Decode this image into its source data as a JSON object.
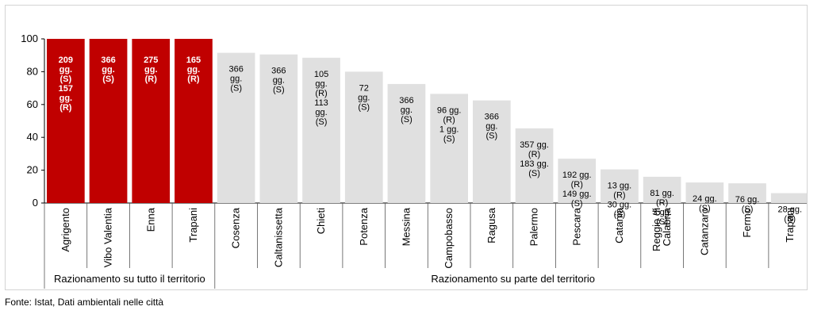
{
  "chart_data": {
    "type": "bar",
    "title": "",
    "xlabel": "",
    "ylabel": "",
    "ylim": [
      0,
      100
    ],
    "yticks": [
      0,
      20,
      40,
      60,
      80,
      100
    ],
    "grid": false,
    "groups": [
      {
        "label": "Razionamento su tutto il territorio",
        "color": "#c00000"
      },
      {
        "label": "Razionamento su parte del territorio",
        "color": "#e0e0e0"
      }
    ],
    "categories": [
      {
        "name": "Agrigento",
        "group": 0,
        "value": 100,
        "annotation": [
          "209",
          "gg.",
          "(S)",
          "157",
          "gg.",
          "(R)"
        ]
      },
      {
        "name": "Vibo Valentia",
        "group": 0,
        "value": 100,
        "annotation": [
          "366",
          "gg.",
          "(S)"
        ]
      },
      {
        "name": "Enna",
        "group": 0,
        "value": 100,
        "annotation": [
          "275",
          "gg.",
          "(R)"
        ]
      },
      {
        "name": "Trapani",
        "group": 0,
        "value": 100,
        "annotation": [
          "165",
          "gg.",
          "(R)"
        ]
      },
      {
        "name": "Cosenza",
        "group": 1,
        "value": 91.5,
        "annotation": [
          "366",
          "gg.",
          "(S)"
        ]
      },
      {
        "name": "Caltanissetta",
        "group": 1,
        "value": 90.5,
        "annotation": [
          "366",
          "gg.",
          "(S)"
        ]
      },
      {
        "name": "Chieti",
        "group": 1,
        "value": 88.5,
        "annotation": [
          "105",
          "gg.",
          "(R)",
          "113",
          "gg.",
          "(S)"
        ]
      },
      {
        "name": "Potenza",
        "group": 1,
        "value": 80,
        "annotation": [
          "72",
          "gg.",
          "(S)"
        ]
      },
      {
        "name": "Messina",
        "group": 1,
        "value": 72.5,
        "annotation": [
          "366",
          "gg.",
          "(S)"
        ]
      },
      {
        "name": "Campobasso",
        "group": 1,
        "value": 66.5,
        "annotation": [
          "96 gg.",
          "(R)",
          "1 gg.",
          "(S)"
        ]
      },
      {
        "name": "Ragusa",
        "group": 1,
        "value": 62.5,
        "annotation": [
          "366",
          "gg.",
          "(S)"
        ]
      },
      {
        "name": "Palermo",
        "group": 1,
        "value": 45.5,
        "annotation": [
          "357 gg.",
          "(R)",
          "183 gg.",
          "(S)"
        ]
      },
      {
        "name": "Pescara",
        "group": 1,
        "value": 27,
        "annotation": [
          "192 gg.",
          "(R)",
          "149 gg.",
          "(S)"
        ]
      },
      {
        "name": "Catania",
        "group": 1,
        "value": 20.5,
        "annotation": [
          "13 gg.",
          "(R)",
          "30 gg.",
          "(S)"
        ]
      },
      {
        "name": "Reggio di Calabria",
        "group": 1,
        "value": 16,
        "annotation": [
          "81 gg.",
          "(R)",
          "3 gg.",
          "(S)"
        ]
      },
      {
        "name": "Catanzaro",
        "group": 1,
        "value": 12.5,
        "annotation": [
          "24 gg.",
          "(S)"
        ]
      },
      {
        "name": "Fermo",
        "group": 1,
        "value": 12,
        "annotation": [
          "76 gg.",
          "(S)"
        ]
      },
      {
        "name": "Trapani",
        "group": 1,
        "value": 6,
        "annotation": [
          "28 gg.",
          "(S)"
        ]
      }
    ],
    "category_label_lines": {
      "Reggio di Calabria": [
        "Reggio di",
        "Calabria"
      ]
    }
  },
  "source": "Fonte: Istat, Dati ambientali nelle città"
}
